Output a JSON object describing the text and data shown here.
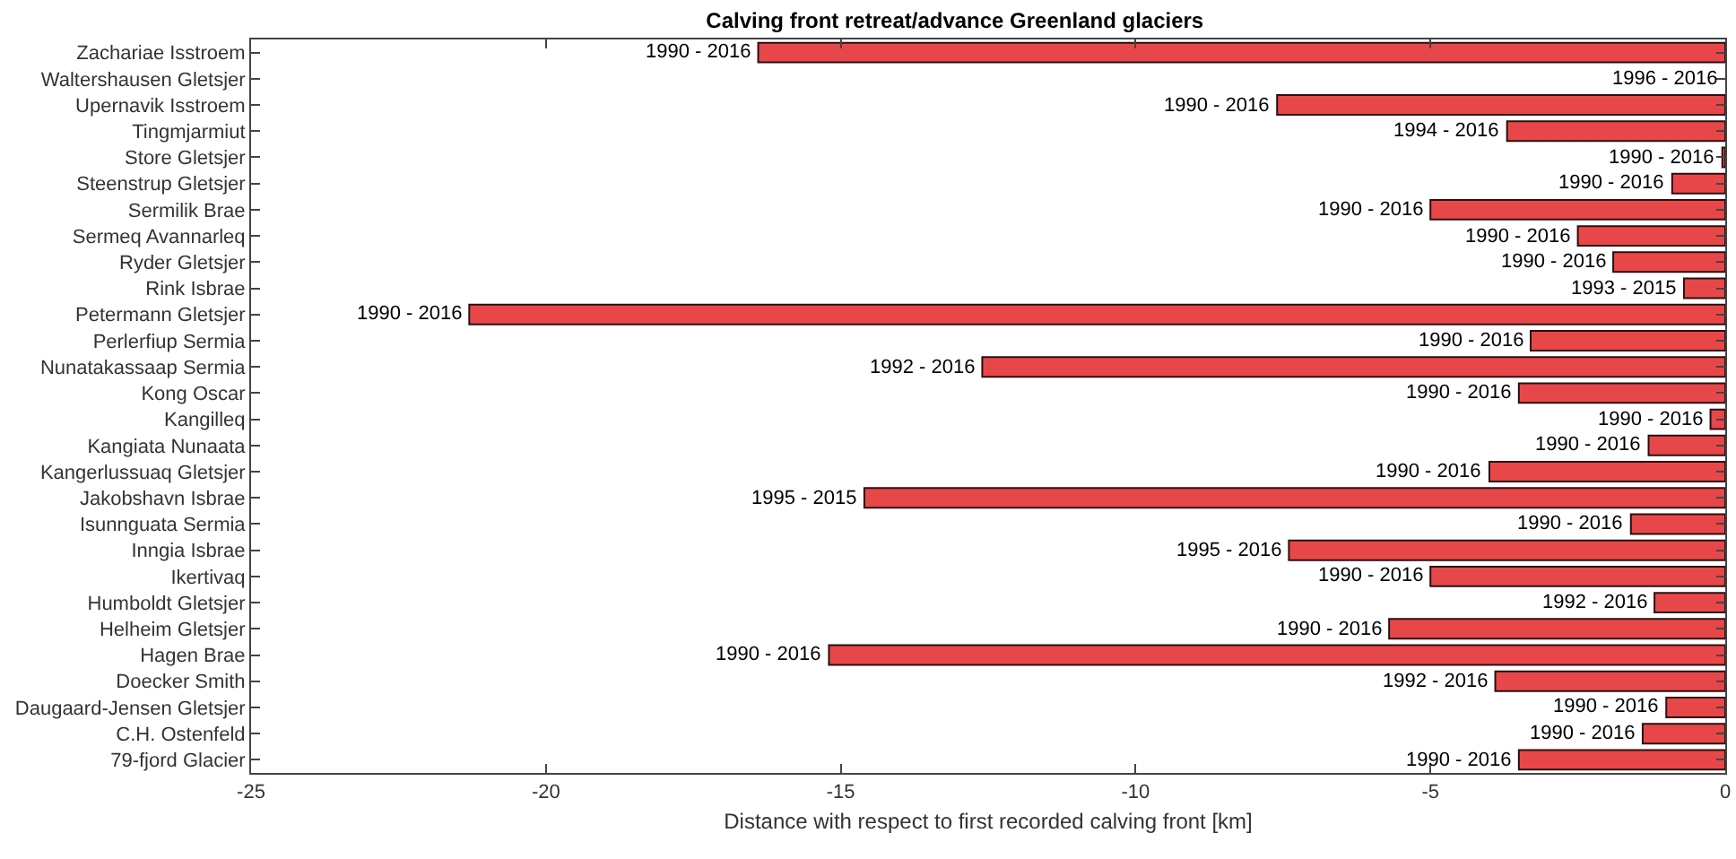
{
  "chart_data": {
    "type": "bar",
    "orientation": "horizontal",
    "title": "Calving front retreat/advance Greenland glaciers",
    "xlabel": "Distance with respect to first recorded calving front [km]",
    "categories": [
      "Zachariae Isstroem",
      "Waltershausen Gletsjer",
      "Upernavik Isstroem",
      "Tingmjarmiut",
      "Store Gletsjer",
      "Steenstrup Gletsjer",
      "Sermilik Brae",
      "Sermeq Avannarleq",
      "Ryder Gletsjer",
      "Rink Isbrae",
      "Petermann Gletsjer",
      "Perlerfiup Sermia",
      "Nunatakassaap Sermia",
      "Kong Oscar",
      "Kangilleq",
      "Kangiata Nunaata",
      "Kangerlussuaq Gletsjer",
      "Jakobshavn Isbrae",
      "Isunnguata Sermia",
      "Inngia Isbrae",
      "Ikertivaq",
      "Humboldt Gletsjer",
      "Helheim Gletsjer",
      "Hagen Brae",
      "Doecker Smith",
      "Daugaard-Jensen Gletsjer",
      "C.H. Ostenfeld",
      "79-fjord Glacier"
    ],
    "values": [
      -16.4,
      0,
      -7.6,
      -3.7,
      -0.05,
      -0.9,
      -5.0,
      -2.5,
      -1.9,
      -0.7,
      -21.3,
      -3.3,
      -12.6,
      -3.5,
      -0.25,
      -1.3,
      -4.0,
      -14.6,
      -1.6,
      -7.4,
      -5.0,
      -1.2,
      -5.7,
      -15.2,
      -3.9,
      -1.0,
      -1.4,
      -3.5
    ],
    "annotations": [
      {
        "text": "1990 - 2016",
        "x": -16.4,
        "y": "Zachariae Isstroem"
      },
      {
        "text": "1996 - 2016",
        "x": 0,
        "y": "Waltershausen Gletsjer"
      },
      {
        "text": "1990 - 2016",
        "x": -7.6,
        "y": "Upernavik Isstroem"
      },
      {
        "text": "1994 - 2016",
        "x": -3.7,
        "y": "Tingmjarmiut"
      },
      {
        "text": "1990 - 2016",
        "x": -0.05,
        "y": "Store Gletsjer"
      },
      {
        "text": "1990 - 2016",
        "x": -0.9,
        "y": "Steenstrup Gletsjer"
      },
      {
        "text": "1990 - 2016",
        "x": -5.0,
        "y": "Sermilik Brae"
      },
      {
        "text": "1990 - 2016",
        "x": -2.5,
        "y": "Sermeq Avannarleq"
      },
      {
        "text": "1990 - 2016",
        "x": -1.9,
        "y": "Ryder Gletsjer"
      },
      {
        "text": "1993 - 2015",
        "x": -0.7,
        "y": "Rink Isbrae"
      },
      {
        "text": "1990 - 2016",
        "x": -21.3,
        "y": "Petermann Gletsjer"
      },
      {
        "text": "1990 - 2016",
        "x": -3.3,
        "y": "Perlerfiup Sermia"
      },
      {
        "text": "1992 - 2016",
        "x": -12.6,
        "y": "Nunatakassaap Sermia"
      },
      {
        "text": "1990 - 2016",
        "x": -3.5,
        "y": "Kong Oscar"
      },
      {
        "text": "1990 - 2016",
        "x": -0.25,
        "y": "Kangilleq"
      },
      {
        "text": "1990 - 2016",
        "x": -1.3,
        "y": "Kangiata Nunaata"
      },
      {
        "text": "1990 - 2016",
        "x": -4.0,
        "y": "Kangerlussuaq Gletsjer"
      },
      {
        "text": "1995 - 2015",
        "x": -14.6,
        "y": "Jakobshavn Isbrae"
      },
      {
        "text": "1990 - 2016",
        "x": -1.6,
        "y": "Isunnguata Sermia"
      },
      {
        "text": "1995 - 2016",
        "x": -7.4,
        "y": "Inngia Isbrae"
      },
      {
        "text": "1990 - 2016",
        "x": -5.0,
        "y": "Ikertivaq"
      },
      {
        "text": "1992 - 2016",
        "x": -1.2,
        "y": "Humboldt Gletsjer"
      },
      {
        "text": "1990 - 2016",
        "x": -5.7,
        "y": "Helheim Gletsjer"
      },
      {
        "text": "1990 - 2016",
        "x": -15.2,
        "y": "Hagen Brae"
      },
      {
        "text": "1992 - 2016",
        "x": -3.9,
        "y": "Doecker Smith"
      },
      {
        "text": "1990 - 2016",
        "x": -1.0,
        "y": "Daugaard-Jensen Gletsjer"
      },
      {
        "text": "1990 - 2016",
        "x": -1.4,
        "y": "C.H. Ostenfeld"
      },
      {
        "text": "1990 - 2016",
        "x": -3.5,
        "y": "79-fjord Glacier"
      }
    ],
    "color": "#e8474a",
    "xlim": [
      -25,
      0
    ],
    "xticks": [
      -25,
      -20,
      -15,
      -10,
      -5,
      0
    ],
    "grid": false
  }
}
